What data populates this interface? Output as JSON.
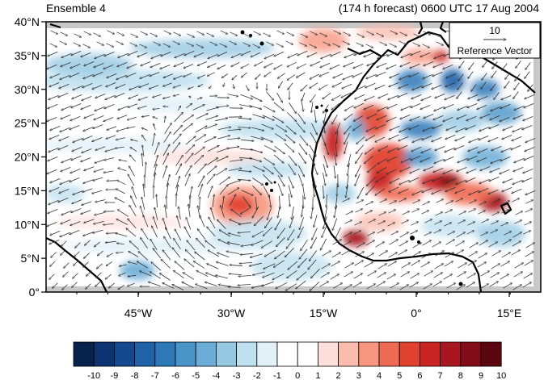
{
  "titles": {
    "left": "Ensemble 4",
    "right": "(174 h forecast) 0600 UTC 17 Aug 2004"
  },
  "map": {
    "lon_range": [
      -60,
      20
    ],
    "lat_range": [
      0,
      40
    ],
    "lat_ticks": [
      "0°",
      "5°N",
      "10°N",
      "15°N",
      "20°N",
      "25°N",
      "30°N",
      "35°N",
      "40°N"
    ],
    "lon_ticks": [
      "45°W",
      "30°W",
      "15°W",
      "0°",
      "15°E"
    ],
    "colors": {
      "land_missing": "#c8c8c8",
      "coast": "#000000",
      "vector": "#333333"
    }
  },
  "reference_vector": {
    "value": "10",
    "label": "Reference Vector"
  },
  "colorbar": {
    "labels": [
      "-10",
      "-9",
      "-8",
      "-7",
      "-6",
      "-5",
      "-4",
      "-3",
      "-2",
      "-1",
      "0",
      "1",
      "2",
      "3",
      "4",
      "5",
      "6",
      "7",
      "8",
      "9",
      "10"
    ],
    "colors": [
      "#08224e",
      "#0c3470",
      "#14498f",
      "#1f62a8",
      "#2f78b8",
      "#4a94c8",
      "#6badd6",
      "#96c8e2",
      "#bfe0ef",
      "#e2f1f8",
      "#ffffff",
      "#ffffff",
      "#fde0dc",
      "#fbbcae",
      "#f79680",
      "#ef6a52",
      "#e0422f",
      "#c92424",
      "#a81620",
      "#820c18",
      "#5c0610"
    ]
  }
}
